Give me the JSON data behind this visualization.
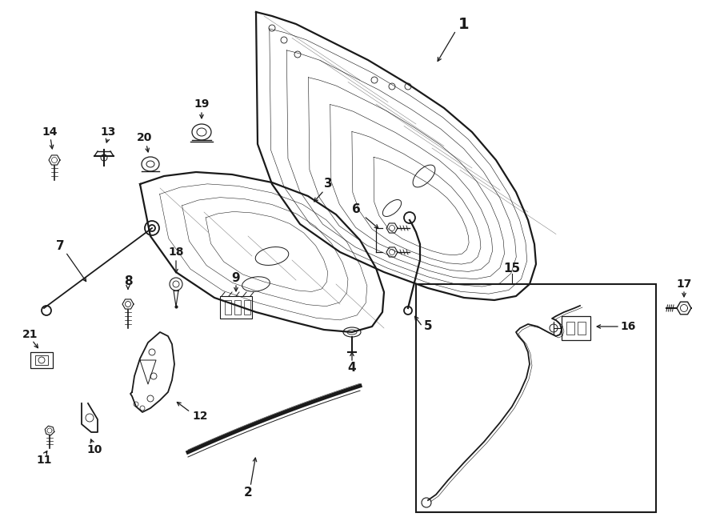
{
  "title": "",
  "background_color": "#ffffff",
  "line_color": "#1a1a1a",
  "fig_width": 9.0,
  "fig_height": 6.61,
  "dpi": 100,
  "label_fontsize": 11,
  "small_fontsize": 10,
  "lw_main": 1.3,
  "lw_thin": 0.7,
  "lw_thick": 2.0
}
